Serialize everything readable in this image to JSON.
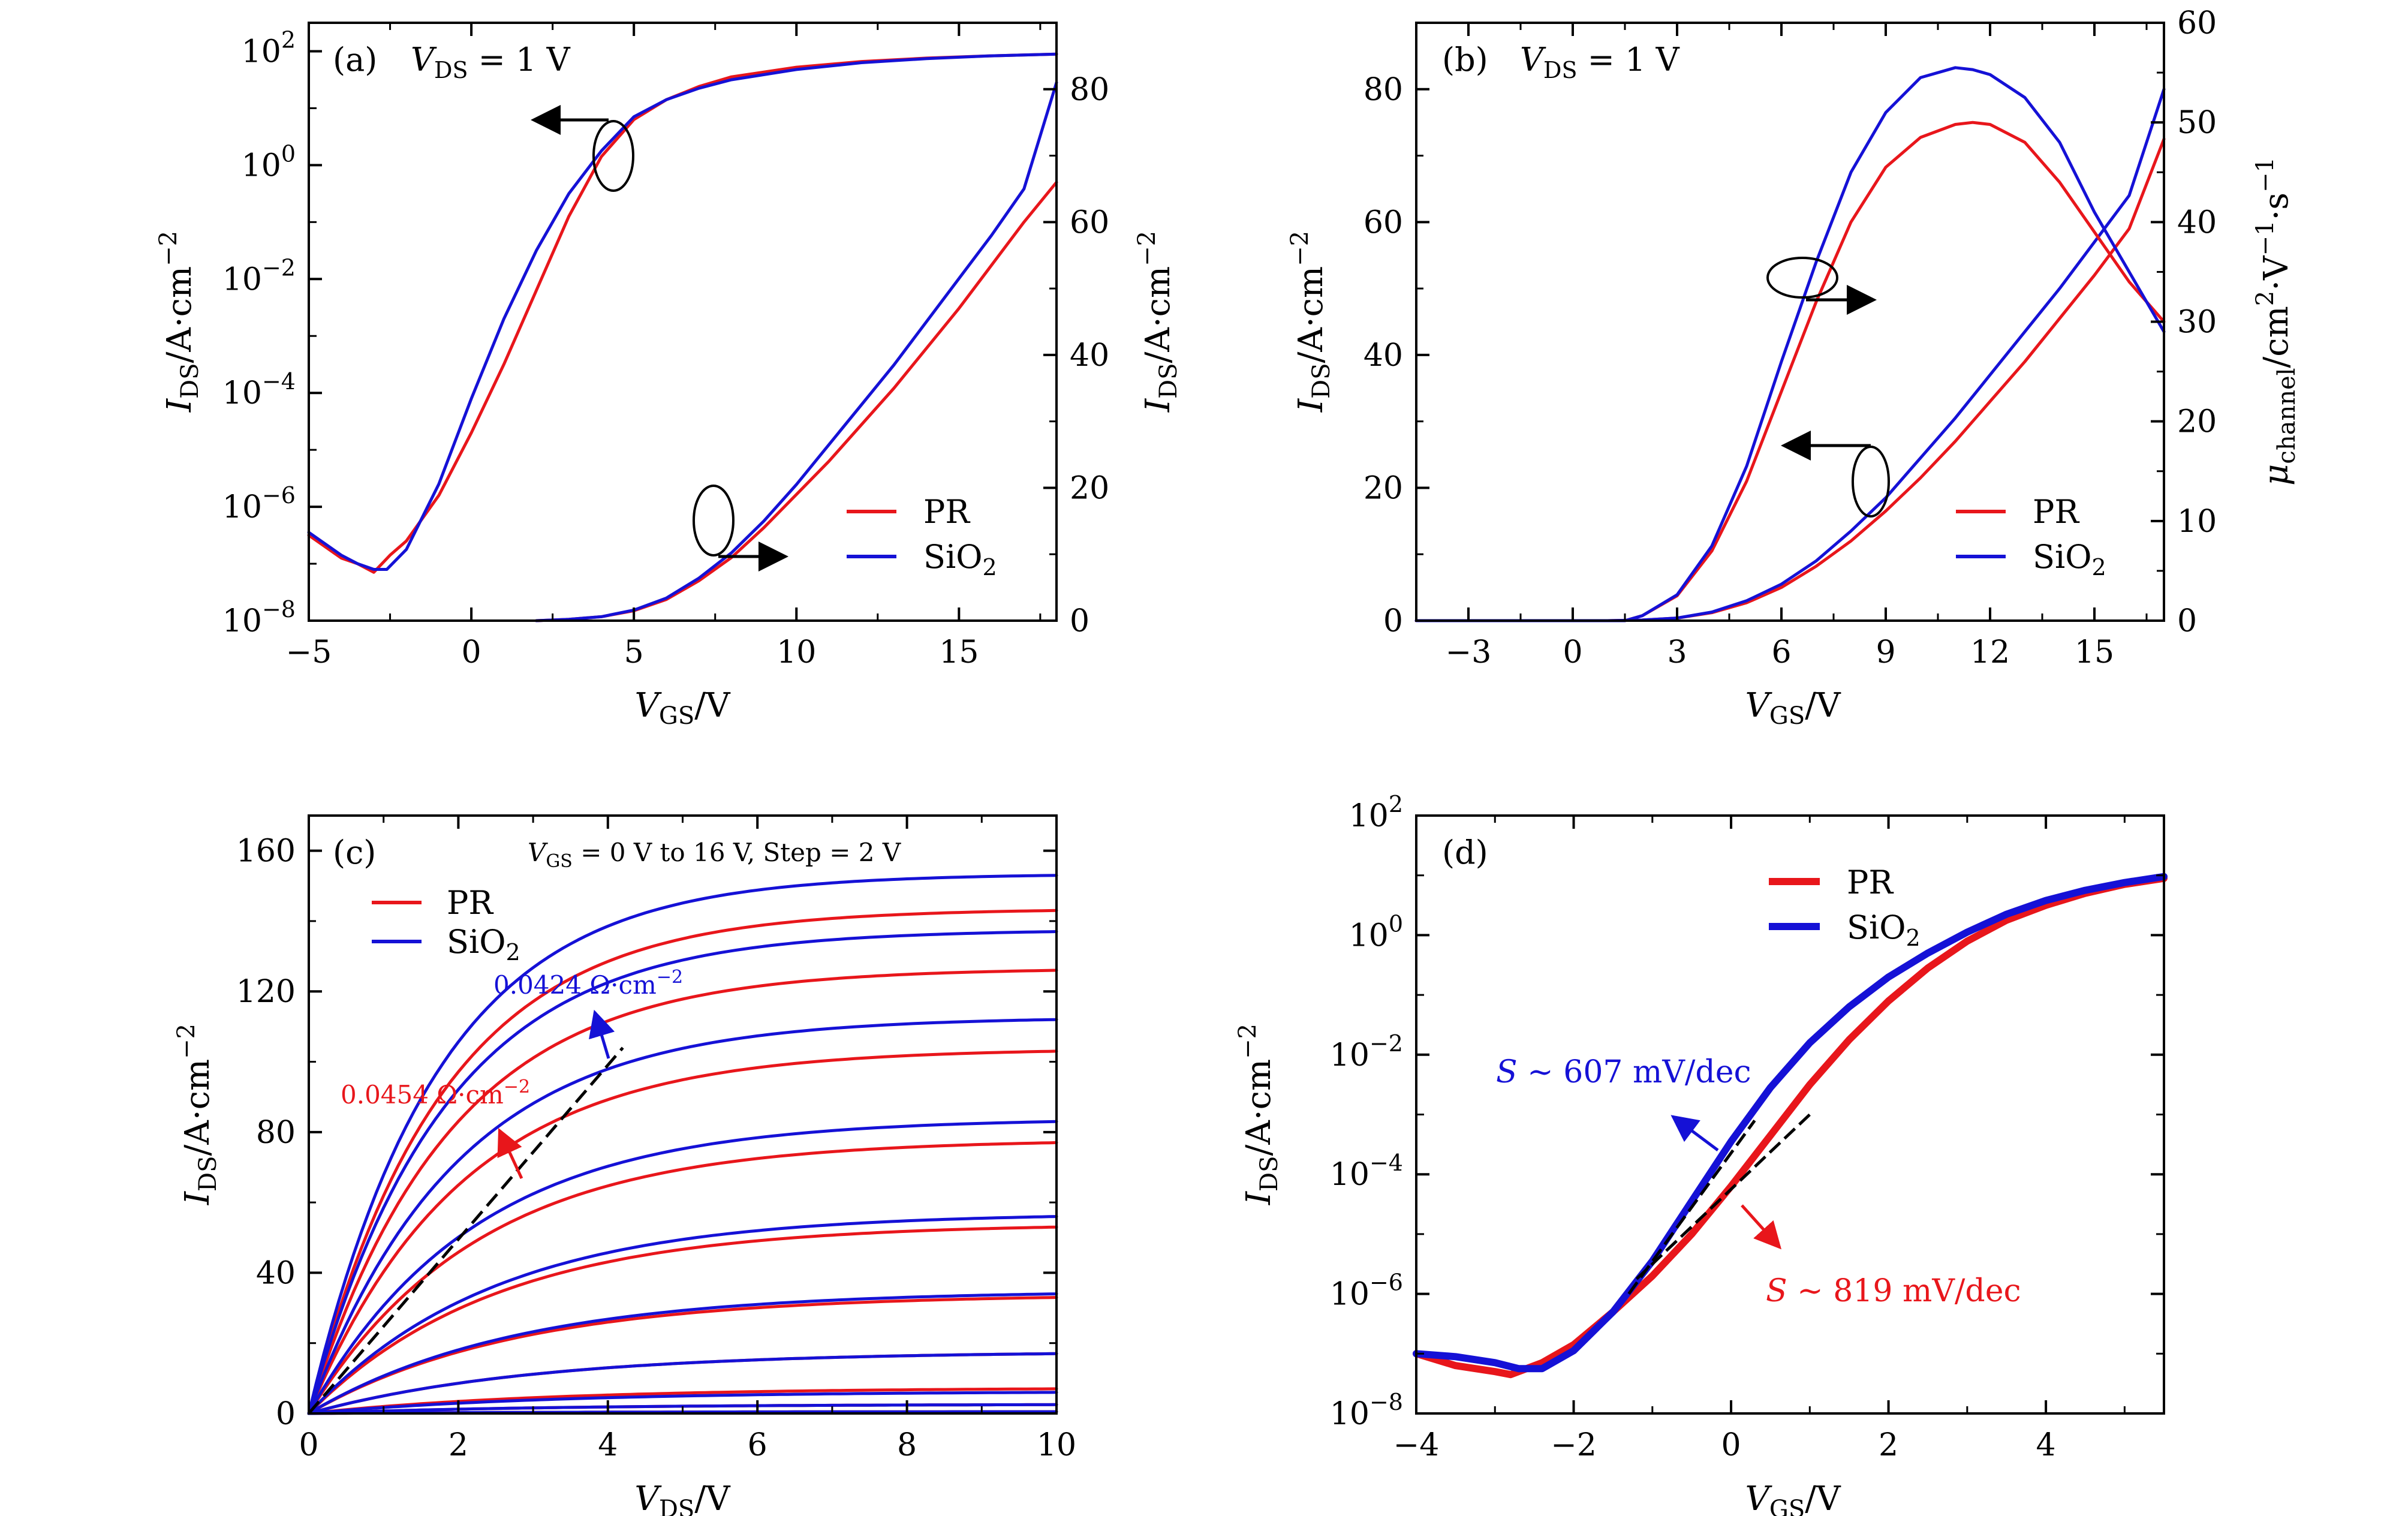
{
  "colors": {
    "pr": "#e8161b",
    "sio2": "#1511d6",
    "fit": "#000000"
  },
  "legend": {
    "pr": "PR",
    "sio2_main": "SiO",
    "sio2_sub": "2"
  },
  "chart_data": [
    {
      "id": "a",
      "type": "line",
      "panel_label": "(a)",
      "annotation": {
        "v": "V",
        "sub": "DS",
        "rest": " = 1 V"
      },
      "xlabel": {
        "v": "V",
        "sub": "GS",
        "unit": "/V"
      },
      "ylabel_left": {
        "v": "I",
        "sub": "DS",
        "unit": "/A·cm",
        "sup": "−2"
      },
      "ylabel_right": {
        "v": "I",
        "sub": "DS",
        "unit": "/A·cm",
        "sup": "−2"
      },
      "xlim": [
        -5,
        18
      ],
      "xticks": [
        -5,
        0,
        5,
        10,
        15
      ],
      "xtick_labels": [
        "−5",
        "0",
        "5",
        "10",
        "15"
      ],
      "ylim_left_log": [
        -8,
        2.5
      ],
      "yticks_left_exp": [
        -8,
        -6,
        -4,
        -2,
        0,
        2
      ],
      "yticks_left_labels": [
        "10",
        "10",
        "10",
        "10",
        "10",
        "10"
      ],
      "yticks_left_sups": [
        "−8",
        "−6",
        "−4",
        "−2",
        "0",
        "2"
      ],
      "ylim_right": [
        0,
        90
      ],
      "yticks_right": [
        0,
        20,
        40,
        60,
        80
      ],
      "yticks_right_labels": [
        "0",
        "20",
        "40",
        "60",
        "80"
      ],
      "series": [
        {
          "name": "PR",
          "axis": "left-log",
          "x": [
            -5,
            -4,
            -3.5,
            -3,
            -2.5,
            -2,
            -1,
            0,
            1,
            2,
            3,
            4,
            5,
            6,
            7,
            8,
            10,
            12,
            14,
            16,
            18
          ],
          "y": [
            -6.5,
            -6.9,
            -7.0,
            -7.15,
            -6.85,
            -6.6,
            -5.8,
            -4.7,
            -3.5,
            -2.2,
            -0.9,
            0.15,
            0.8,
            1.15,
            1.38,
            1.55,
            1.72,
            1.82,
            1.88,
            1.92,
            1.95
          ]
        },
        {
          "name": "SiO2",
          "axis": "left-log",
          "x": [
            -5,
            -4,
            -3.5,
            -3,
            -2.6,
            -2,
            -1,
            0,
            1,
            2,
            3,
            4,
            5,
            6,
            7,
            8,
            10,
            12,
            14,
            16,
            18
          ],
          "y": [
            -6.45,
            -6.85,
            -7.0,
            -7.1,
            -7.1,
            -6.75,
            -5.6,
            -4.1,
            -2.7,
            -1.5,
            -0.5,
            0.25,
            0.85,
            1.15,
            1.35,
            1.5,
            1.68,
            1.8,
            1.87,
            1.92,
            1.95
          ]
        },
        {
          "name": "PR",
          "axis": "right-linear",
          "x": [
            2,
            3,
            4,
            5,
            6,
            7,
            8,
            9,
            10,
            11,
            12,
            13,
            14,
            15,
            16,
            17,
            18
          ],
          "y": [
            0,
            0.2,
            0.6,
            1.5,
            3.2,
            6,
            9.5,
            14,
            19,
            24,
            29.5,
            35,
            41,
            47,
            53.5,
            60,
            66
          ]
        },
        {
          "name": "SiO2",
          "axis": "right-linear",
          "x": [
            2,
            3,
            4,
            5,
            6,
            7,
            8,
            9,
            10,
            11,
            12,
            13,
            14,
            15,
            16,
            17,
            18
          ],
          "y": [
            0,
            0.2,
            0.6,
            1.6,
            3.4,
            6.4,
            10.2,
            15,
            20.5,
            26.5,
            32.5,
            38.5,
            45,
            51.5,
            58,
            65,
            81
          ]
        }
      ],
      "legend_placement": "bottom-right"
    },
    {
      "id": "b",
      "type": "line",
      "panel_label": "(b)",
      "annotation": {
        "v": "V",
        "sub": "DS",
        "rest": " = 1 V"
      },
      "xlabel": {
        "v": "V",
        "sub": "GS",
        "unit": "/V"
      },
      "ylabel_left": {
        "v": "I",
        "sub": "DS",
        "unit": "/A·cm",
        "sup": "−2"
      },
      "ylabel_right": {
        "v": "μ",
        "sub": "channel",
        "unit": "/cm",
        "sup": "2",
        "unit2": "·V",
        "sup2": "−1",
        "unit3": "·s",
        "sup3": "−1"
      },
      "xlim": [
        -4.5,
        17
      ],
      "xticks": [
        -3,
        0,
        3,
        6,
        9,
        12,
        15
      ],
      "xtick_labels": [
        "−3",
        "0",
        "3",
        "6",
        "9",
        "12",
        "15"
      ],
      "ylim_left": [
        0,
        90
      ],
      "yticks_left": [
        0,
        20,
        40,
        60,
        80
      ],
      "yticks_left_labels": [
        "0",
        "20",
        "40",
        "60",
        "80"
      ],
      "ylim_right": [
        0,
        60
      ],
      "yticks_right": [
        0,
        10,
        20,
        30,
        40,
        50,
        60
      ],
      "yticks_right_labels": [
        "0",
        "10",
        "20",
        "30",
        "40",
        "50",
        "60"
      ],
      "series": [
        {
          "name": "PR",
          "axis": "left",
          "x": [
            -4.5,
            1,
            2,
            3,
            4,
            5,
            6,
            7,
            8,
            9,
            10,
            11,
            12,
            13,
            14,
            15,
            16,
            17
          ],
          "y": [
            0,
            0,
            0.1,
            0.4,
            1.2,
            2.7,
            5,
            8.2,
            12,
            16.5,
            21.5,
            27,
            33,
            39,
            45.5,
            52,
            59,
            72.5
          ]
        },
        {
          "name": "SiO2",
          "axis": "left",
          "x": [
            -4.5,
            1,
            2,
            3,
            4,
            5,
            6,
            7,
            8,
            9,
            10,
            11,
            12,
            13,
            14,
            15,
            16,
            17
          ],
          "y": [
            0,
            0,
            0.1,
            0.4,
            1.3,
            3,
            5.5,
            9,
            13.5,
            18.5,
            24.5,
            30.5,
            37,
            43.5,
            50,
            57,
            64,
            80
          ]
        },
        {
          "name": "PR",
          "axis": "right",
          "x": [
            -4.5,
            1.5,
            2,
            3,
            4,
            5,
            6,
            7,
            8,
            9,
            10,
            11,
            11.5,
            12,
            13,
            14,
            15,
            16,
            17
          ],
          "y": [
            0,
            0,
            0.5,
            2.5,
            7,
            14,
            23,
            32,
            40,
            45.5,
            48.5,
            49.8,
            50,
            49.8,
            48,
            44,
            39,
            34,
            30
          ]
        },
        {
          "name": "SiO2",
          "axis": "right",
          "x": [
            -4.5,
            1.5,
            2,
            3,
            4,
            5,
            6,
            7,
            8,
            9,
            10,
            11,
            11.5,
            12,
            13,
            14,
            15,
            16,
            17
          ],
          "y": [
            0,
            0,
            0.5,
            2.6,
            7.5,
            15.5,
            26,
            36,
            45,
            51,
            54.5,
            55.5,
            55.3,
            54.8,
            52.5,
            48,
            41,
            35,
            29
          ]
        }
      ],
      "legend_placement": "bottom-right"
    },
    {
      "id": "c",
      "type": "line",
      "panel_label": "(c)",
      "annotation": {
        "v": "V",
        "sub": "GS",
        "rest": " = 0 V to 16 V, Step = 2 V"
      },
      "xlabel": {
        "v": "V",
        "sub": "DS",
        "unit": "/V"
      },
      "ylabel_left": {
        "v": "I",
        "sub": "DS",
        "unit": "/A·cm",
        "sup": "−2"
      },
      "xlim": [
        0,
        10
      ],
      "xticks": [
        0,
        2,
        4,
        6,
        8,
        10
      ],
      "xtick_labels": [
        "0",
        "2",
        "4",
        "6",
        "8",
        "10"
      ],
      "ylim_left": [
        0,
        170
      ],
      "yticks_left": [
        0,
        40,
        80,
        120,
        160
      ],
      "yticks_left_labels": [
        "0",
        "40",
        "80",
        "120",
        "160"
      ],
      "pr_saturation_values": [
        0.5,
        2.5,
        7,
        17,
        33,
        53,
        77,
        103,
        126,
        143
      ],
      "sio2_saturation_values": [
        0.5,
        2.5,
        6,
        17,
        34,
        56,
        83,
        112,
        137,
        153
      ],
      "annotations_text": [
        {
          "text": "0.0424 Ω·cm",
          "sup": "−2",
          "color": "sio2"
        },
        {
          "text": "0.0454 Ω·cm",
          "sup": "−2",
          "color": "pr"
        }
      ],
      "legend_placement": "top-left"
    },
    {
      "id": "d",
      "type": "line",
      "panel_label": "(d)",
      "xlabel": {
        "v": "V",
        "sub": "GS",
        "unit": "/V"
      },
      "ylabel_left": {
        "v": "I",
        "sub": "DS",
        "unit": "/A·cm",
        "sup": "−2"
      },
      "xlim": [
        -4,
        5.5
      ],
      "xticks": [
        -4,
        -2,
        0,
        2,
        4
      ],
      "xtick_labels": [
        "−4",
        "−2",
        "0",
        "2",
        "4"
      ],
      "ylim_left_log": [
        -8,
        2
      ],
      "yticks_left_exp": [
        -8,
        -6,
        -4,
        -2,
        0,
        2
      ],
      "yticks_left_labels": [
        "10",
        "10",
        "10",
        "10",
        "10",
        "10"
      ],
      "yticks_left_sups": [
        "−8",
        "−6",
        "−4",
        "−2",
        "0",
        "2"
      ],
      "series": [
        {
          "name": "PR",
          "x": [
            -4,
            -3.5,
            -3,
            -2.8,
            -2.4,
            -2,
            -1.5,
            -1,
            -0.5,
            0,
            0.5,
            1,
            1.5,
            2,
            2.5,
            3,
            3.5,
            4,
            4.5,
            5,
            5.5
          ],
          "y": [
            -7,
            -7.2,
            -7.3,
            -7.35,
            -7.15,
            -6.85,
            -6.3,
            -5.7,
            -5,
            -4.2,
            -3.35,
            -2.5,
            -1.75,
            -1.1,
            -0.55,
            -0.1,
            0.25,
            0.5,
            0.7,
            0.85,
            0.95
          ]
        },
        {
          "name": "SiO2",
          "x": [
            -4,
            -3.5,
            -3,
            -2.7,
            -2.4,
            -2,
            -1.5,
            -1,
            -0.5,
            0,
            0.5,
            1,
            1.5,
            2,
            2.5,
            3,
            3.5,
            4,
            4.5,
            5,
            5.5
          ],
          "y": [
            -7,
            -7.05,
            -7.15,
            -7.25,
            -7.25,
            -6.95,
            -6.3,
            -5.45,
            -4.45,
            -3.45,
            -2.55,
            -1.8,
            -1.2,
            -0.7,
            -0.3,
            0.05,
            0.35,
            0.58,
            0.75,
            0.88,
            0.98
          ]
        }
      ],
      "annotations_text": [
        {
          "s": "S",
          "text": " ~ 607 mV/dec",
          "color": "sio2"
        },
        {
          "s": "S",
          "text": " ~ 819 mV/dec",
          "color": "pr"
        }
      ],
      "legend_placement": "top-center"
    }
  ]
}
